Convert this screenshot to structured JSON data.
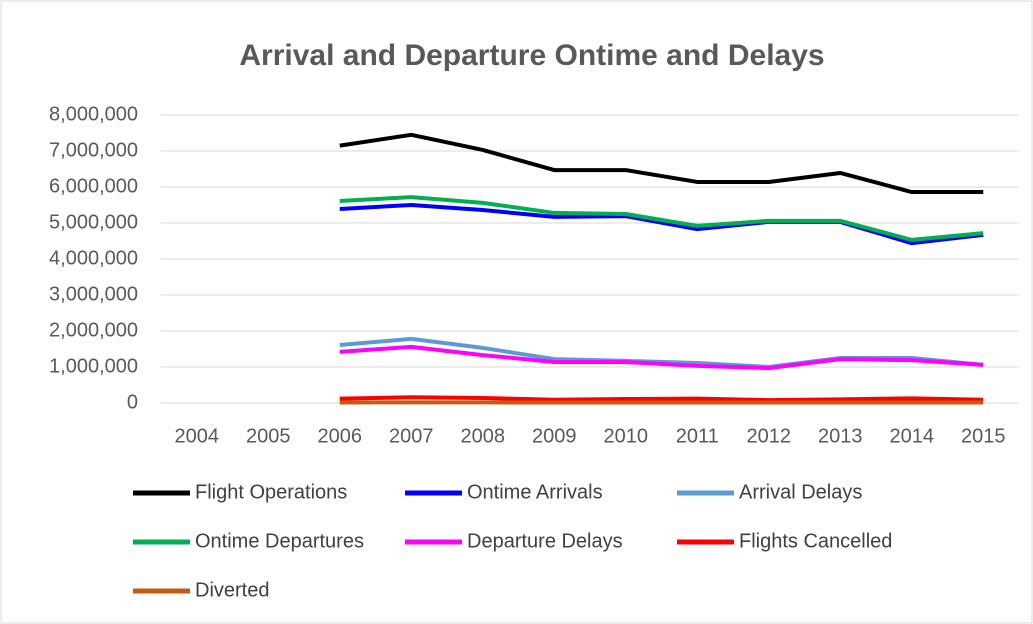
{
  "chart_data": {
    "type": "line",
    "title": "Arrival and Departure Ontime and Delays",
    "categories": [
      "2004",
      "2005",
      "2006",
      "2007",
      "2008",
      "2009",
      "2010",
      "2011",
      "2012",
      "2013",
      "2014",
      "2015"
    ],
    "series": [
      {
        "name": "Flight Operations",
        "color": "#000000",
        "values": [
          null,
          null,
          7150000,
          7450000,
          7030000,
          6470000,
          6470000,
          6140000,
          6140000,
          6390000,
          5860000,
          5860000
        ]
      },
      {
        "name": "Ontime Arrivals",
        "color": "#0000ff",
        "values": [
          null,
          null,
          5390000,
          5500000,
          5360000,
          5170000,
          5190000,
          4830000,
          5030000,
          5030000,
          4440000,
          4670000
        ]
      },
      {
        "name": "Arrival Delays",
        "color": "#5b9bd5",
        "values": [
          null,
          null,
          1610000,
          1780000,
          1530000,
          1220000,
          1170000,
          1110000,
          1000000,
          1250000,
          1250000,
          1060000
        ]
      },
      {
        "name": "Ontime Departures",
        "color": "#00b050",
        "values": [
          null,
          null,
          5610000,
          5720000,
          5560000,
          5280000,
          5250000,
          4920000,
          5060000,
          5060000,
          4530000,
          4720000
        ]
      },
      {
        "name": "Departure Delays",
        "color": "#ff00ff",
        "values": [
          null,
          null,
          1420000,
          1560000,
          1330000,
          1140000,
          1140000,
          1030000,
          970000,
          1220000,
          1190000,
          1060000
        ]
      },
      {
        "name": "Flights Cancelled",
        "color": "#ff0000",
        "values": [
          null,
          null,
          120000,
          160000,
          140000,
          90000,
          110000,
          120000,
          80000,
          100000,
          130000,
          90000
        ]
      },
      {
        "name": "Diverted",
        "color": "#c55a11",
        "values": [
          null,
          null,
          15000,
          17000,
          16000,
          14000,
          15000,
          14000,
          13000,
          15000,
          14000,
          14000
        ]
      }
    ],
    "ylim": [
      0,
      8000000
    ],
    "yticks": [
      0,
      {
        "value": 1000000,
        "label": "1,000,000"
      },
      {
        "value": 2000000,
        "label": "2,000,000"
      },
      {
        "value": 3000000,
        "label": "3,000,000"
      },
      {
        "value": 4000000,
        "label": "4,000,000"
      },
      {
        "value": 5000000,
        "label": "5,000,000"
      },
      {
        "value": 6000000,
        "label": "6,000,000"
      },
      {
        "value": 7000000,
        "label": "7,000,000"
      },
      {
        "value": 8000000,
        "label": "8,000,000"
      }
    ],
    "grid": true,
    "legend": "bottom"
  }
}
